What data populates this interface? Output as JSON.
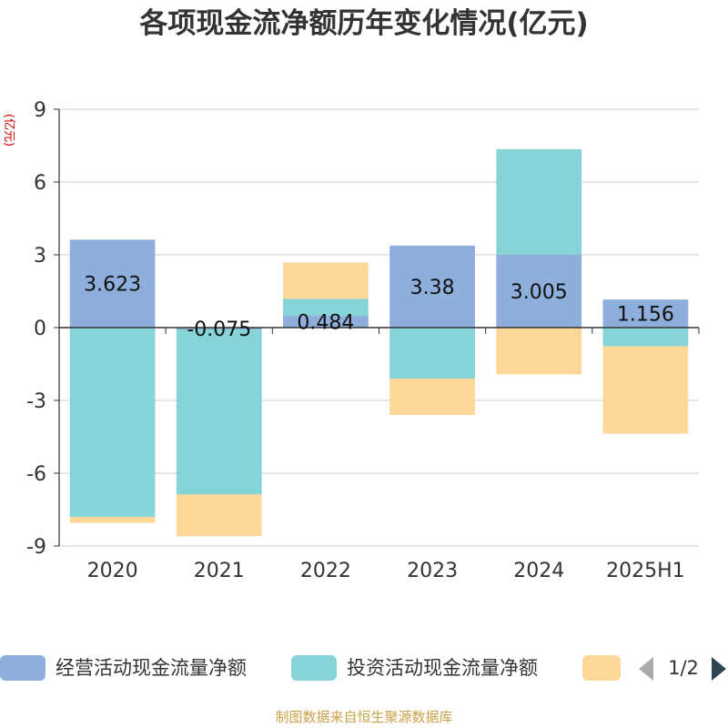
{
  "chart_data": {
    "type": "bar",
    "stacked": true,
    "title": "各项现金流净额历年变化情况(亿元)",
    "ylabel": "(亿元)",
    "categories": [
      "2020",
      "2021",
      "2022",
      "2023",
      "2024",
      "2025H1"
    ],
    "ylim": [
      -9,
      9
    ],
    "yticks": [
      -9,
      -6,
      -3,
      0,
      3,
      6,
      9
    ],
    "grid": true,
    "legend_position": "bottom",
    "series": [
      {
        "name": "经营活动现金流量净额",
        "color": "#8eaedb",
        "values": [
          3.623,
          -0.075,
          0.484,
          3.38,
          3.005,
          1.156
        ],
        "labels": [
          "3.623",
          "-0.075",
          "0.484",
          "3.38",
          "3.005",
          "1.156"
        ]
      },
      {
        "name": "投资活动现金流量净额",
        "color": "#86d4d8",
        "values": [
          -7.8,
          -6.8,
          0.7,
          -2.1,
          4.35,
          -0.77
        ]
      },
      {
        "name": "",
        "color": "#fdd898",
        "values": [
          -0.25,
          -1.72,
          1.5,
          -1.5,
          -1.93,
          -3.6
        ]
      }
    ]
  },
  "legend": {
    "items": [
      {
        "label": "经营活动现金流量净额",
        "color": "#8eaedb"
      },
      {
        "label": "投资活动现金流量净额",
        "color": "#86d4d8"
      },
      {
        "label": "",
        "color": "#fdd898"
      }
    ],
    "pager": "1/2"
  },
  "footer": "制图数据来自恒生聚源数据库"
}
